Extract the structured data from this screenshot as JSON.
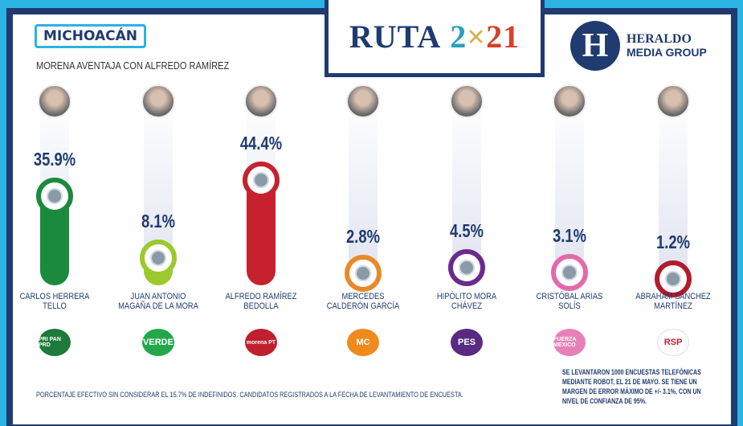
{
  "header": {
    "state": "MICHOACÁN",
    "headline": "MORENA AVENTAJA CON ALFREDO RAMÍREZ",
    "logo": {
      "ruta": "RUTA",
      "year": [
        "2",
        "×",
        "21"
      ]
    },
    "publisher": {
      "mark": "H",
      "name": "HERALDO",
      "sub": "MEDIA GROUP"
    }
  },
  "chart_data": {
    "type": "bar",
    "unit": "%",
    "categories": [
      "CARLOS HERRERA TELLO",
      "JUAN ANTONIO MAGAÑA DE LA MORA",
      "ALFREDO RAMÍREZ BEDOLLA",
      "MERCEDES CALDERÓN GARCÍA",
      "HIPÓLITO MORA CHÁVEZ",
      "CRISTÓBAL ARIAS SOLÍS",
      "ABRAHAM SÁNCHEZ MARTÍNEZ"
    ],
    "values": [
      35.9,
      8.1,
      44.4,
      2.8,
      4.5,
      3.1,
      1.2
    ],
    "labels": [
      "35.9%",
      "8.1%",
      "44.4%",
      "2.8%",
      "4.5%",
      "3.1%",
      "1.2%"
    ],
    "colors": [
      "#1a8a3c",
      "#9cc92c",
      "#c7202e",
      "#e8892a",
      "#6b2b8c",
      "#e36aa9",
      "#b21b2b"
    ],
    "parties": [
      "PRI PAN PRD",
      "VERDE",
      "morena PT",
      "MC",
      "PES",
      "FUERZA MÉXICO",
      "RSP"
    ],
    "party_colors": [
      "#1e7a3a",
      "#22a84a",
      "#c01f2e",
      "#f08a1c",
      "#5a2a82",
      "#e880b8",
      "#ffffff"
    ]
  },
  "footer": {
    "note": "PORCENTAJE EFECTIVO SIN CONSIDERAR EL 15.7% DE INDEFINIDOS. CANDIDATOS REGISTRADOS A LA FECHA DE LEVANTAMIENTO DE ENCUESTA.",
    "methodology": "SE LEVANTARON 1000 ENCUESTAS TELEFÓNICAS MEDIANTE ROBOT, EL 21 DE MAYO. SE TIENE UN MARGEN DE ERROR MÁXIMO DE +/- 3.1%, CON UN NIVEL DE CONFIANZA DE 95%."
  }
}
